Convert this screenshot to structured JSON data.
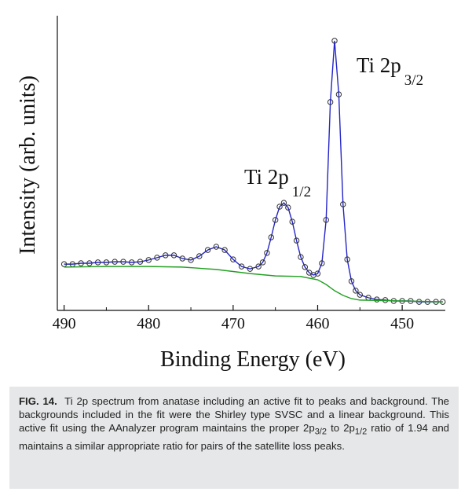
{
  "chart_data": {
    "type": "scatter-line",
    "xlabel": "Binding Energy (eV)",
    "ylabel": "Intensity (arb. units)",
    "annotations": [
      {
        "text": "Ti 2p",
        "sub": "3/2"
      },
      {
        "text": "Ti 2p",
        "sub": "1/2"
      }
    ],
    "xlim": [
      490.8,
      444.9
    ],
    "ylim": [
      0,
      100
    ],
    "xticks": [
      490,
      480,
      470,
      460,
      450
    ],
    "xminorticks": [
      485,
      475,
      465,
      455
    ],
    "series": [
      {
        "color": "#2424c8",
        "marker_color": "#333333",
        "x": [
          490,
          489,
          488,
          487,
          486,
          485,
          484,
          483,
          482,
          481,
          480,
          479,
          478,
          477,
          476,
          475,
          474,
          473,
          472,
          471,
          470,
          469,
          468,
          467,
          466.5,
          466,
          465.5,
          465,
          464.5,
          464,
          463.5,
          463,
          462.5,
          462,
          461.5,
          461,
          460.5,
          460,
          459.5,
          459,
          458.5,
          458,
          457.5,
          457,
          456.5,
          456,
          455.5,
          455,
          454,
          453,
          452,
          451,
          450,
          449,
          448,
          447,
          446,
          445.2
        ],
        "values": [
          15.7,
          15.7,
          16.0,
          16.0,
          16.3,
          16.3,
          16.5,
          16.5,
          16.3,
          16.5,
          17.1,
          17.9,
          18.7,
          18.7,
          17.6,
          17.1,
          18.4,
          20.5,
          21.6,
          20.5,
          17.3,
          14.9,
          14.1,
          14.9,
          16.3,
          19.5,
          24.8,
          30.7,
          35.2,
          36.5,
          34.9,
          30.1,
          23.7,
          18.1,
          14.7,
          12.8,
          12.0,
          12.5,
          16.0,
          30.7,
          70.7,
          91.5,
          73.3,
          36.0,
          17.3,
          9.9,
          6.7,
          5.3,
          4.3,
          3.7,
          3.5,
          3.2,
          3.2,
          3.2,
          2.9,
          2.9,
          2.9,
          2.9
        ]
      },
      {
        "color": "#22a022",
        "x": [
          490,
          485,
          480,
          476,
          472,
          468,
          465,
          462,
          460,
          459,
          458,
          457,
          456,
          455,
          450,
          445.2
        ],
        "values": [
          14.7,
          14.9,
          14.9,
          14.7,
          13.9,
          12.5,
          11.7,
          11.5,
          10.4,
          8.8,
          6.7,
          5.1,
          4.0,
          3.5,
          3.2,
          2.9
        ]
      }
    ]
  },
  "caption": {
    "label": "FIG. 14.",
    "parts": [
      "Ti 2p spectrum from anatase including an active fit to peaks and background. The backgrounds included in the fit were the Shirley type SVSC and a linear background. This active fit using the AAnalyzer program maintains the proper 2p",
      "3/2",
      " to 2p",
      "1/2",
      " ratio of 1.94 and maintains a similar appropriate ratio for pairs of the satellite loss peaks."
    ]
  }
}
